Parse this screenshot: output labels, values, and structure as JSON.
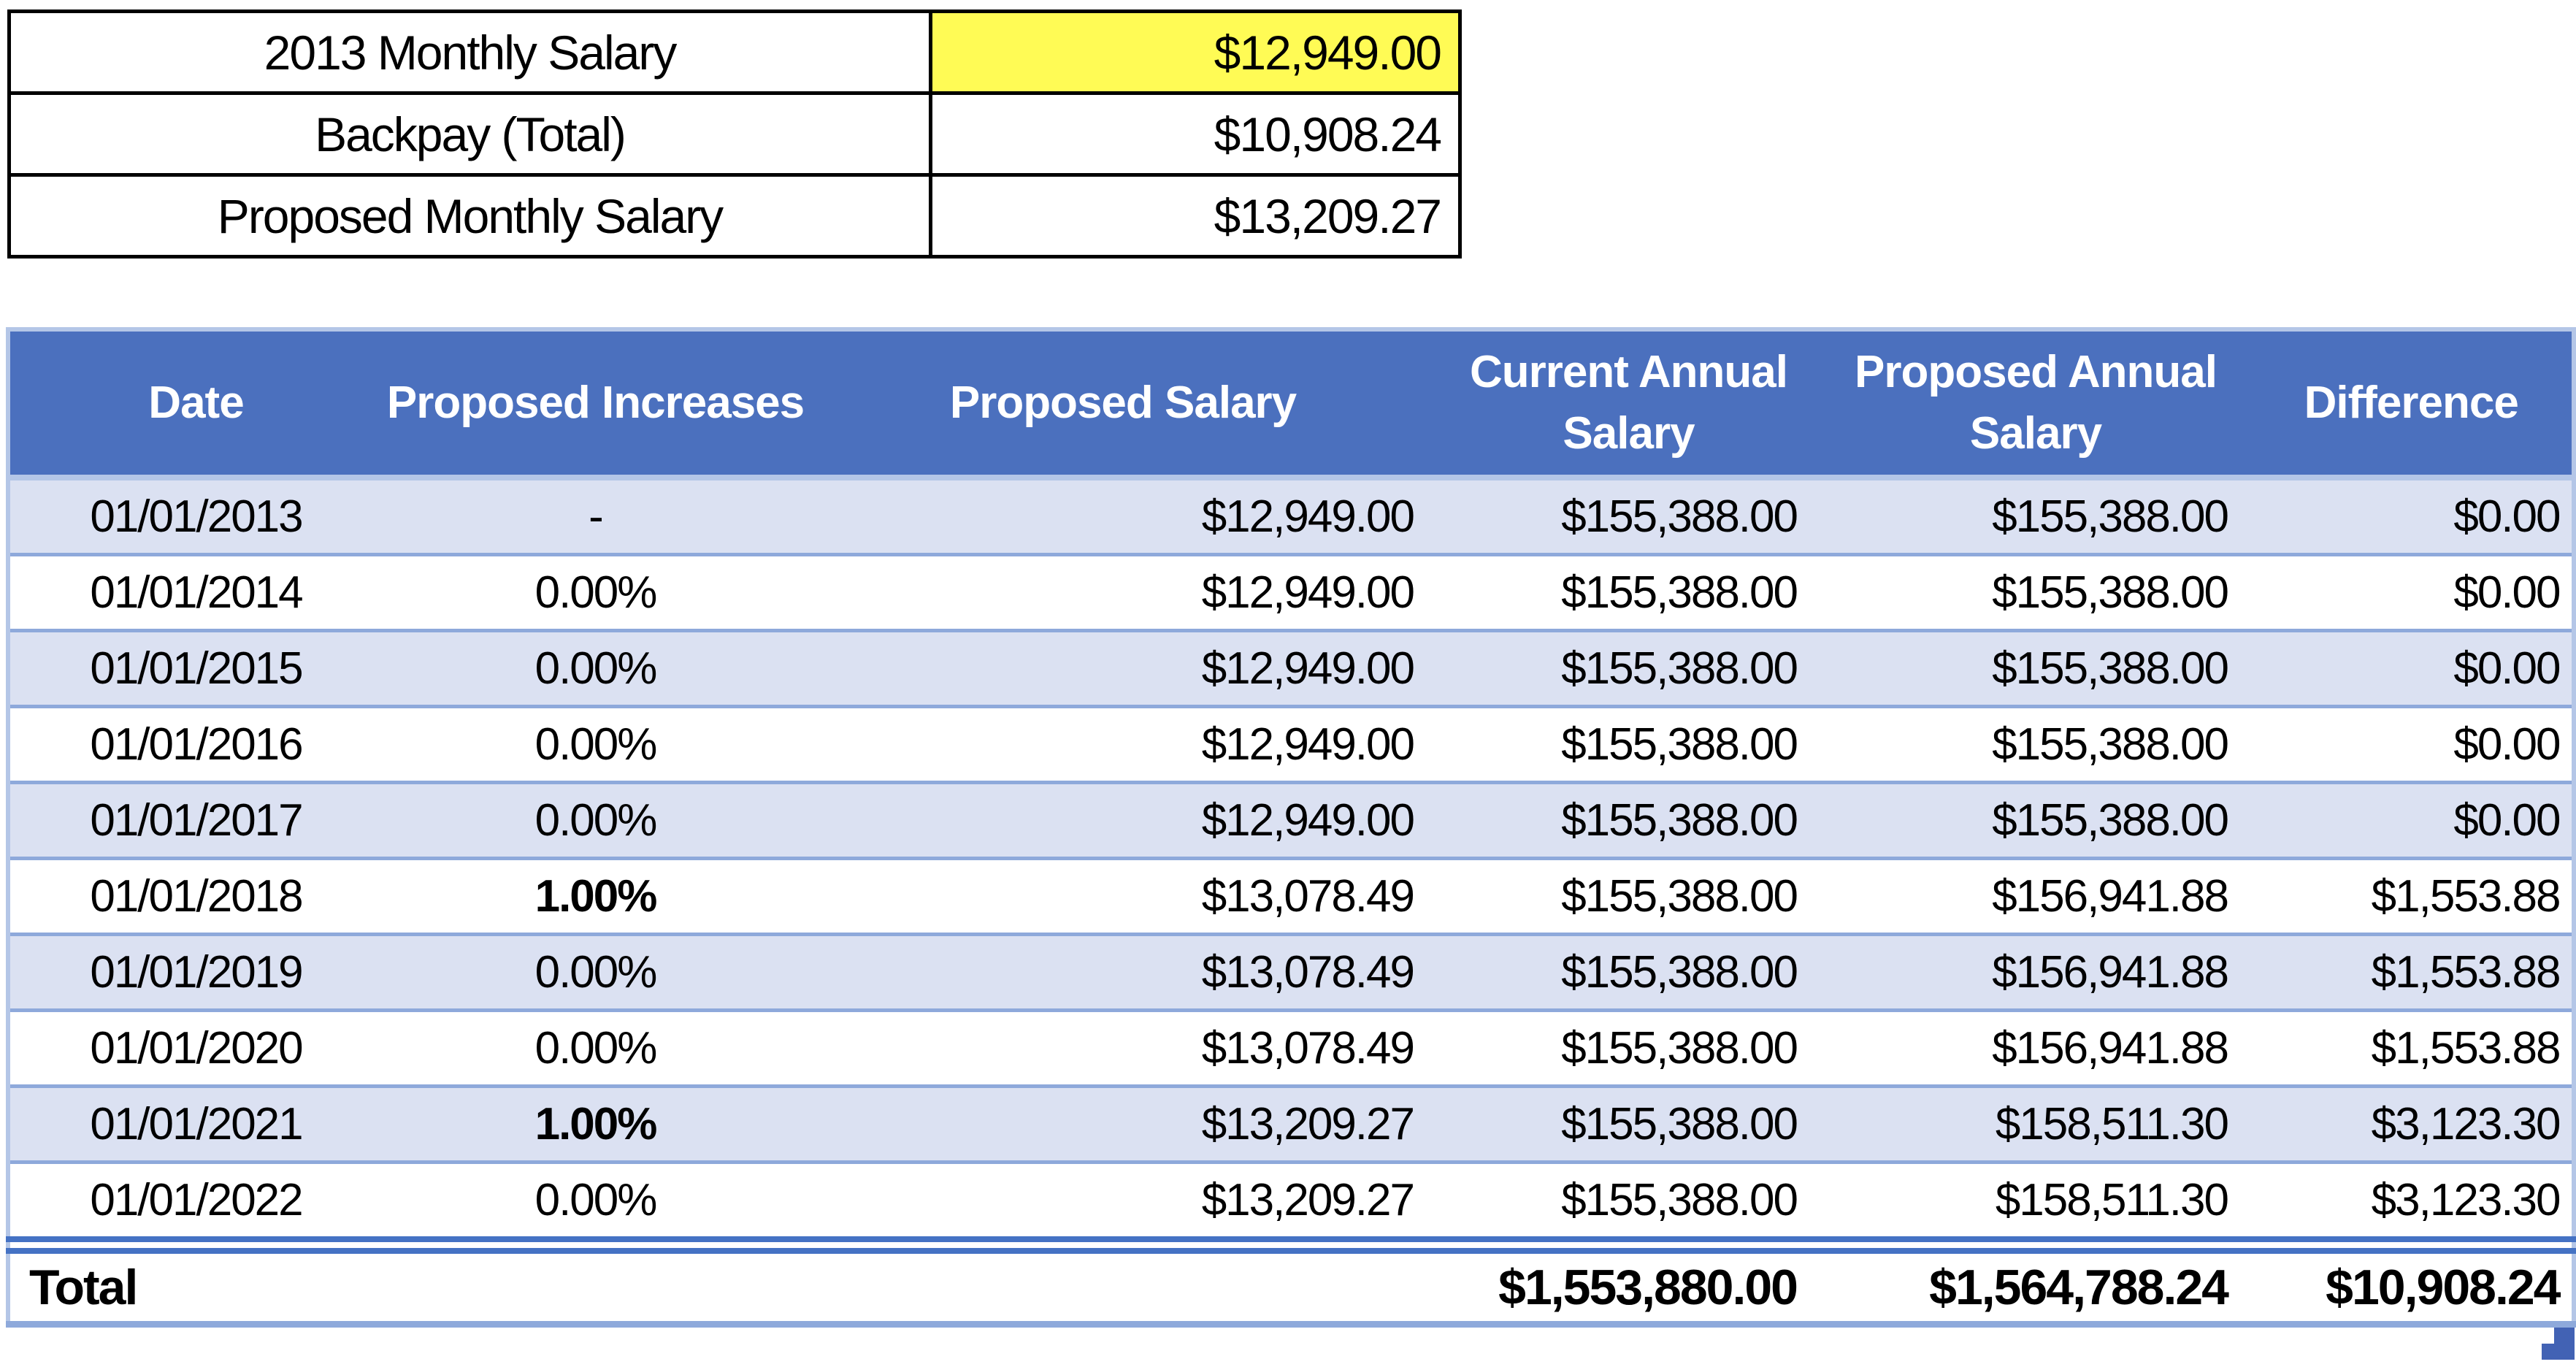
{
  "colors": {
    "header_blue": "#4B70BE",
    "band_blue": "#DBE1F2",
    "row_line_blue": "#8EA9DB",
    "light_border_blue": "#B4C6E7",
    "double_rule_blue": "#4472C4",
    "highlight_yellow": "#FFFB55",
    "fill_handle_blue": "#4262B4"
  },
  "summary_table": {
    "rows": [
      {
        "label": "2013 Monthly Salary",
        "value": "$12,949.00",
        "highlighted": true
      },
      {
        "label": "Backpay (Total)",
        "value": "$10,908.24",
        "highlighted": false
      },
      {
        "label": "Proposed Monthly Salary",
        "value": "$13,209.27",
        "highlighted": false
      }
    ]
  },
  "main_table": {
    "headers": {
      "date": "Date",
      "increase": "Proposed Increases",
      "proposed_salary": "Proposed Salary",
      "current_annual": "Current Annual Salary",
      "proposed_annual": "Proposed Annual Salary",
      "difference": "Difference"
    },
    "rows": [
      {
        "date": "01/01/2013",
        "increase": "-",
        "salary": "$12,949.00",
        "current": "$155,388.00",
        "proposed": "$155,388.00",
        "difference": "$0.00"
      },
      {
        "date": "01/01/2014",
        "increase": "0.00%",
        "salary": "$12,949.00",
        "current": "$155,388.00",
        "proposed": "$155,388.00",
        "difference": "$0.00"
      },
      {
        "date": "01/01/2015",
        "increase": "0.00%",
        "salary": "$12,949.00",
        "current": "$155,388.00",
        "proposed": "$155,388.00",
        "difference": "$0.00"
      },
      {
        "date": "01/01/2016",
        "increase": "0.00%",
        "salary": "$12,949.00",
        "current": "$155,388.00",
        "proposed": "$155,388.00",
        "difference": "$0.00"
      },
      {
        "date": "01/01/2017",
        "increase": "0.00%",
        "salary": "$12,949.00",
        "current": "$155,388.00",
        "proposed": "$155,388.00",
        "difference": "$0.00"
      },
      {
        "date": "01/01/2018",
        "increase": "1.00%",
        "salary": "$13,078.49",
        "current": "$155,388.00",
        "proposed": "$156,941.88",
        "difference": "$1,553.88"
      },
      {
        "date": "01/01/2019",
        "increase": "0.00%",
        "salary": "$13,078.49",
        "current": "$155,388.00",
        "proposed": "$156,941.88",
        "difference": "$1,553.88"
      },
      {
        "date": "01/01/2020",
        "increase": "0.00%",
        "salary": "$13,078.49",
        "current": "$155,388.00",
        "proposed": "$156,941.88",
        "difference": "$1,553.88"
      },
      {
        "date": "01/01/2021",
        "increase": "1.00%",
        "salary": "$13,209.27",
        "current": "$155,388.00",
        "proposed": "$158,511.30",
        "difference": "$3,123.30"
      },
      {
        "date": "01/01/2022",
        "increase": "0.00%",
        "salary": "$13,209.27",
        "current": "$155,388.00",
        "proposed": "$158,511.30",
        "difference": "$3,123.30"
      }
    ],
    "total": {
      "label": "Total",
      "current_total": "$1,553,880.00",
      "proposed_total": "$1,564,788.24",
      "difference_total": "$10,908.24"
    }
  }
}
